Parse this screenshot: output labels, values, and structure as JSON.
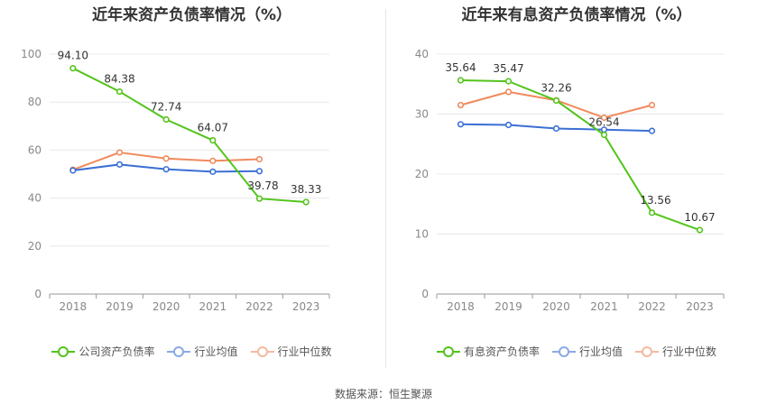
{
  "chart_data": [
    {
      "type": "line",
      "title": "近年来资产负债率情况（%）",
      "categories": [
        "2018",
        "2019",
        "2020",
        "2021",
        "2022",
        "2023"
      ],
      "ylim": [
        0,
        100
      ],
      "yticks": [
        0,
        20,
        40,
        60,
        80,
        100
      ],
      "grid": true,
      "legend_position": "bottom",
      "series": [
        {
          "name": "公司资产负债率",
          "color": "#52c41a",
          "values": [
            94.1,
            84.38,
            72.74,
            64.07,
            39.78,
            38.33
          ],
          "labels": [
            "94.10",
            "84.38",
            "72.74",
            "64.07",
            "39.78",
            "38.33"
          ]
        },
        {
          "name": "行业均值",
          "color": "#3b6fd4",
          "values": [
            51.5,
            54.0,
            52.0,
            51.0,
            51.2,
            null
          ]
        },
        {
          "name": "行业中位数",
          "color": "#f08a5d",
          "values": [
            51.8,
            59.0,
            56.5,
            55.5,
            56.2,
            null
          ]
        }
      ]
    },
    {
      "type": "line",
      "title": "近年来有息资产负债率情况（%）",
      "categories": [
        "2018",
        "2019",
        "2020",
        "2021",
        "2022",
        "2023"
      ],
      "ylim": [
        0,
        40
      ],
      "yticks": [
        0,
        10,
        20,
        30,
        40
      ],
      "grid": true,
      "legend_position": "bottom",
      "series": [
        {
          "name": "有息资产负债率",
          "color": "#52c41a",
          "values": [
            35.64,
            35.47,
            32.26,
            26.54,
            13.56,
            10.67
          ],
          "labels": [
            "35.64",
            "35.47",
            "32.26",
            "26.54",
            "13.56",
            "10.67"
          ]
        },
        {
          "name": "行业均值",
          "color": "#3b6fd4",
          "values": [
            28.3,
            28.2,
            27.6,
            27.4,
            27.2,
            null
          ]
        },
        {
          "name": "行业中位数",
          "color": "#f08a5d",
          "values": [
            31.5,
            33.7,
            32.3,
            29.4,
            31.5,
            null
          ]
        }
      ]
    }
  ],
  "footer": {
    "source": "数据来源：恒生聚源"
  }
}
